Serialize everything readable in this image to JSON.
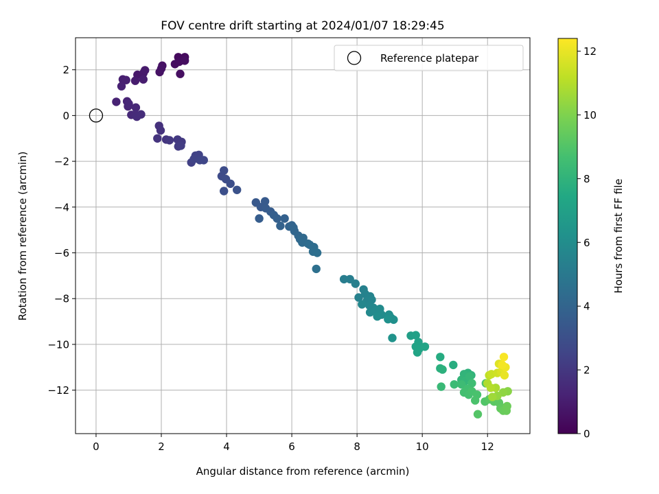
{
  "chart_data": {
    "type": "scatter",
    "title": "FOV centre drift starting at 2024/01/07 18:29:45",
    "xlabel": "Angular distance from reference (arcmin)",
    "ylabel": "Rotation from reference (arcmin)",
    "xlim": [
      -0.63,
      13.3
    ],
    "ylim": [
      -13.9,
      3.4
    ],
    "x_ticks": [
      0,
      2,
      4,
      6,
      8,
      10,
      12
    ],
    "x_tick_labels": [
      "0",
      "2",
      "4",
      "6",
      "8",
      "10",
      "12"
    ],
    "y_ticks": [
      2,
      0,
      -2,
      -4,
      -6,
      -8,
      -10,
      -12
    ],
    "y_tick_labels": [
      "2",
      "0",
      "−2",
      "−4",
      "−6",
      "−8",
      "−10",
      "−12"
    ],
    "grid": true,
    "legend": {
      "location": "upper right",
      "entries": [
        "Reference platepar"
      ]
    },
    "reference_point": {
      "x": 0,
      "y": 0,
      "marker": "open circle"
    },
    "colorbar": {
      "label": "Hours from first FF file",
      "colormap": "viridis",
      "range": [
        0,
        12.4
      ],
      "ticks": [
        0,
        2,
        4,
        6,
        8,
        10,
        12
      ],
      "tick_labels": [
        "0",
        "2",
        "4",
        "6",
        "8",
        "10",
        "12"
      ]
    },
    "points": [
      [
        2.52,
        2.55,
        0.3
      ],
      [
        2.63,
        2.42,
        0.3
      ],
      [
        2.72,
        2.55,
        0.35
      ],
      [
        2.42,
        2.25,
        0.4
      ],
      [
        2.55,
        2.35,
        0.4
      ],
      [
        2.72,
        2.4,
        0.45
      ],
      [
        2.58,
        1.82,
        0.5
      ],
      [
        2.03,
        2.18,
        0.55
      ],
      [
        1.95,
        1.9,
        0.6
      ],
      [
        2.0,
        2.05,
        0.65
      ],
      [
        1.27,
        1.78,
        0.8
      ],
      [
        1.45,
        1.85,
        0.85
      ],
      [
        1.5,
        1.98,
        0.9
      ],
      [
        1.2,
        1.52,
        0.95
      ],
      [
        1.45,
        1.58,
        1.0
      ],
      [
        0.82,
        1.58,
        1.05
      ],
      [
        0.92,
        1.55,
        1.1
      ],
      [
        0.78,
        1.28,
        1.15
      ],
      [
        0.62,
        0.6,
        1.2
      ],
      [
        0.95,
        0.62,
        1.25
      ],
      [
        0.98,
        0.4,
        1.3
      ],
      [
        1.0,
        0.52,
        1.35
      ],
      [
        1.22,
        0.35,
        1.4
      ],
      [
        1.08,
        0.03,
        1.45
      ],
      [
        1.2,
        0.05,
        1.5
      ],
      [
        1.25,
        -0.05,
        1.55
      ],
      [
        1.38,
        0.05,
        1.6
      ],
      [
        1.93,
        -0.45,
        1.75
      ],
      [
        1.98,
        -0.65,
        1.8
      ],
      [
        1.88,
        -1.0,
        1.85
      ],
      [
        2.15,
        -1.05,
        1.9
      ],
      [
        2.25,
        -1.08,
        2.0
      ],
      [
        2.5,
        -1.05,
        2.05
      ],
      [
        2.62,
        -1.15,
        2.1
      ],
      [
        2.52,
        -1.35,
        2.15
      ],
      [
        2.6,
        -1.32,
        2.2
      ],
      [
        2.92,
        -2.05,
        2.35
      ],
      [
        3.05,
        -1.75,
        2.4
      ],
      [
        3.15,
        -1.72,
        2.45
      ],
      [
        3.0,
        -1.9,
        2.5
      ],
      [
        3.18,
        -1.95,
        2.55
      ],
      [
        3.3,
        -1.95,
        2.6
      ],
      [
        3.85,
        -2.65,
        2.8
      ],
      [
        3.92,
        -2.4,
        2.85
      ],
      [
        3.98,
        -2.78,
        2.9
      ],
      [
        4.12,
        -2.98,
        2.95
      ],
      [
        3.92,
        -3.3,
        3.0
      ],
      [
        4.32,
        -3.25,
        3.1
      ],
      [
        4.9,
        -3.8,
        3.4
      ],
      [
        5.05,
        -4.0,
        3.45
      ],
      [
        5.18,
        -3.75,
        3.5
      ],
      [
        5.2,
        -4.05,
        3.55
      ],
      [
        5.35,
        -4.2,
        3.6
      ],
      [
        5.0,
        -4.5,
        3.65
      ],
      [
        5.45,
        -4.35,
        3.7
      ],
      [
        5.55,
        -4.5,
        3.75
      ],
      [
        5.78,
        -4.5,
        3.8
      ],
      [
        5.65,
        -4.82,
        3.85
      ],
      [
        5.92,
        -4.85,
        3.9
      ],
      [
        6.0,
        -4.8,
        3.95
      ],
      [
        6.05,
        -4.9,
        4.0
      ],
      [
        6.08,
        -5.05,
        4.05
      ],
      [
        6.2,
        -5.25,
        4.1
      ],
      [
        6.25,
        -5.4,
        4.15
      ],
      [
        6.35,
        -5.35,
        4.2
      ],
      [
        6.32,
        -5.55,
        4.25
      ],
      [
        6.5,
        -5.6,
        4.3
      ],
      [
        6.55,
        -5.65,
        4.35
      ],
      [
        6.68,
        -5.75,
        4.4
      ],
      [
        6.65,
        -5.95,
        4.45
      ],
      [
        6.78,
        -6.0,
        4.5
      ],
      [
        6.75,
        -6.7,
        4.55
      ],
      [
        7.6,
        -7.15,
        5.2
      ],
      [
        7.78,
        -7.15,
        5.25
      ],
      [
        7.95,
        -7.35,
        5.3
      ],
      [
        8.2,
        -7.6,
        5.35
      ],
      [
        8.05,
        -7.95,
        5.4
      ],
      [
        8.25,
        -7.8,
        5.45
      ],
      [
        8.4,
        -7.9,
        5.5
      ],
      [
        8.3,
        -8.1,
        5.55
      ],
      [
        8.45,
        -8.05,
        5.6
      ],
      [
        8.38,
        -8.3,
        5.65
      ],
      [
        8.15,
        -8.25,
        5.7
      ],
      [
        8.5,
        -8.4,
        5.75
      ],
      [
        8.4,
        -8.6,
        5.8
      ],
      [
        8.55,
        -8.55,
        5.85
      ],
      [
        8.7,
        -8.45,
        5.9
      ],
      [
        8.75,
        -8.7,
        5.95
      ],
      [
        8.62,
        -8.78,
        6.0
      ],
      [
        8.98,
        -8.7,
        6.05
      ],
      [
        9.05,
        -8.85,
        6.1
      ],
      [
        9.12,
        -8.92,
        6.15
      ],
      [
        8.95,
        -8.9,
        6.2
      ],
      [
        9.08,
        -9.72,
        6.3
      ],
      [
        9.65,
        -9.62,
        6.9
      ],
      [
        9.8,
        -9.6,
        7.0
      ],
      [
        9.88,
        -9.9,
        7.05
      ],
      [
        9.8,
        -10.1,
        7.1
      ],
      [
        9.9,
        -10.2,
        7.15
      ],
      [
        10.08,
        -10.1,
        7.2
      ],
      [
        9.85,
        -10.35,
        7.25
      ],
      [
        10.55,
        -10.55,
        7.6
      ],
      [
        10.95,
        -10.9,
        7.7
      ],
      [
        10.55,
        -11.05,
        7.8
      ],
      [
        10.62,
        -11.1,
        7.85
      ],
      [
        11.4,
        -11.25,
        7.95
      ],
      [
        11.5,
        -11.35,
        8.0
      ],
      [
        11.28,
        -11.3,
        8.05
      ],
      [
        11.2,
        -11.55,
        8.1
      ],
      [
        11.32,
        -11.6,
        8.15
      ],
      [
        11.45,
        -11.4,
        8.2
      ],
      [
        10.58,
        -11.85,
        8.3
      ],
      [
        10.98,
        -11.75,
        8.4
      ],
      [
        11.2,
        -11.75,
        8.45
      ],
      [
        11.52,
        -11.7,
        8.5
      ],
      [
        11.38,
        -11.95,
        8.6
      ],
      [
        11.28,
        -12.1,
        8.65
      ],
      [
        11.42,
        -12.2,
        8.7
      ],
      [
        11.52,
        -12.05,
        8.75
      ],
      [
        11.68,
        -12.2,
        8.8
      ],
      [
        11.62,
        -12.45,
        8.85
      ],
      [
        11.95,
        -11.7,
        8.9
      ],
      [
        11.92,
        -12.5,
        9.0
      ],
      [
        11.7,
        -13.05,
        9.05
      ],
      [
        12.05,
        -12.4,
        9.15
      ],
      [
        12.2,
        -12.5,
        9.2
      ],
      [
        12.35,
        -12.55,
        9.25
      ],
      [
        12.4,
        -12.8,
        9.35
      ],
      [
        12.55,
        -12.75,
        9.4
      ],
      [
        12.48,
        -12.9,
        9.5
      ],
      [
        12.58,
        -12.9,
        9.55
      ],
      [
        12.6,
        -12.7,
        9.6
      ],
      [
        12.62,
        -12.05,
        10.2
      ],
      [
        12.48,
        -12.1,
        10.3
      ],
      [
        12.3,
        -12.25,
        10.4
      ],
      [
        12.15,
        -12.3,
        10.6
      ],
      [
        12.25,
        -11.9,
        10.8
      ],
      [
        12.0,
        -11.7,
        10.9
      ],
      [
        12.1,
        -11.9,
        11.0
      ],
      [
        12.05,
        -11.35,
        11.2
      ],
      [
        12.12,
        -11.3,
        11.4
      ],
      [
        12.3,
        -11.25,
        11.5
      ],
      [
        12.42,
        -11.2,
        11.7
      ],
      [
        12.35,
        -10.85,
        11.8
      ],
      [
        12.48,
        -11.05,
        11.9
      ],
      [
        12.52,
        -11.35,
        12.0
      ],
      [
        12.55,
        -11.0,
        12.1
      ],
      [
        12.45,
        -10.9,
        12.2
      ],
      [
        12.5,
        -10.55,
        12.3
      ]
    ]
  }
}
